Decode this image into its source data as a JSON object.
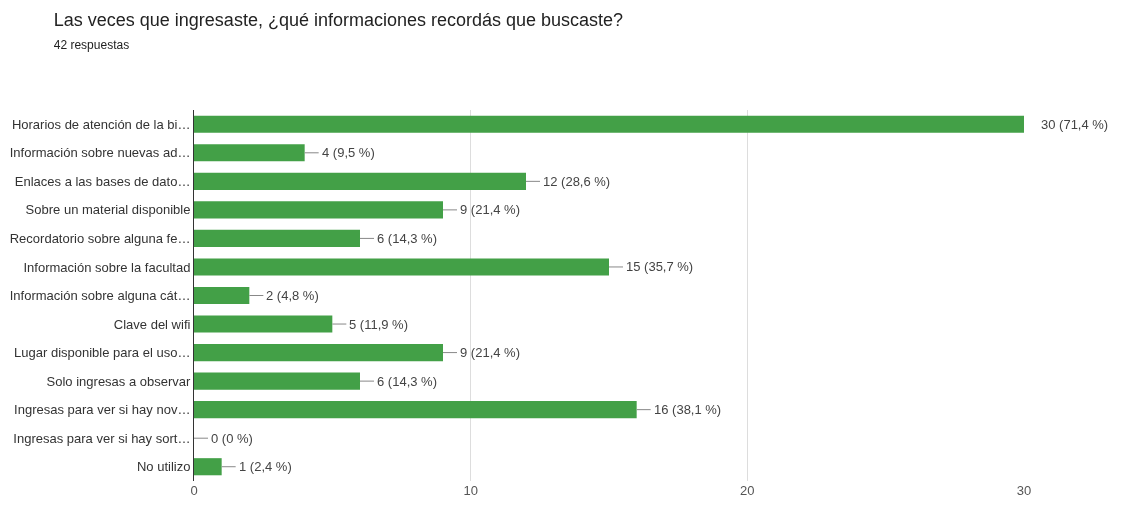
{
  "chart_data": {
    "type": "bar",
    "orientation": "horizontal",
    "title": "Las veces que ingresaste, ¿qué informaciones recordás que buscaste?",
    "subtitle": "42 respuestas",
    "categories": [
      "Horarios de atención de la bi…",
      "Información sobre nuevas ad…",
      "Enlaces a las bases de dato…",
      "Sobre un material disponible",
      "Recordatorio sobre alguna fe…",
      "Información sobre la facultad",
      "Información sobre alguna cát…",
      "Clave del wifi",
      "Lugar disponible para el uso…",
      "Solo ingresas a observar",
      "Ingresas para ver si hay nov…",
      "Ingresas para ver si hay sort…",
      "No utilizo"
    ],
    "values": [
      30,
      4,
      12,
      9,
      6,
      15,
      2,
      5,
      9,
      6,
      16,
      0,
      1
    ],
    "value_labels": [
      "30 (71,4 %)",
      "4 (9,5 %)",
      "12 (28,6 %)",
      "9 (21,4 %)",
      "6 (14,3 %)",
      "15 (35,7 %)",
      "2 (4,8 %)",
      "5 (11,9 %)",
      "9 (21,4 %)",
      "6 (14,3 %)",
      "16 (38,1 %)",
      "0 (0 %)",
      "1 (2,4 %)"
    ],
    "color": "#43a047",
    "xlim": [
      0,
      30
    ],
    "xticks": [
      0,
      10,
      20,
      30
    ],
    "grid": "x"
  }
}
